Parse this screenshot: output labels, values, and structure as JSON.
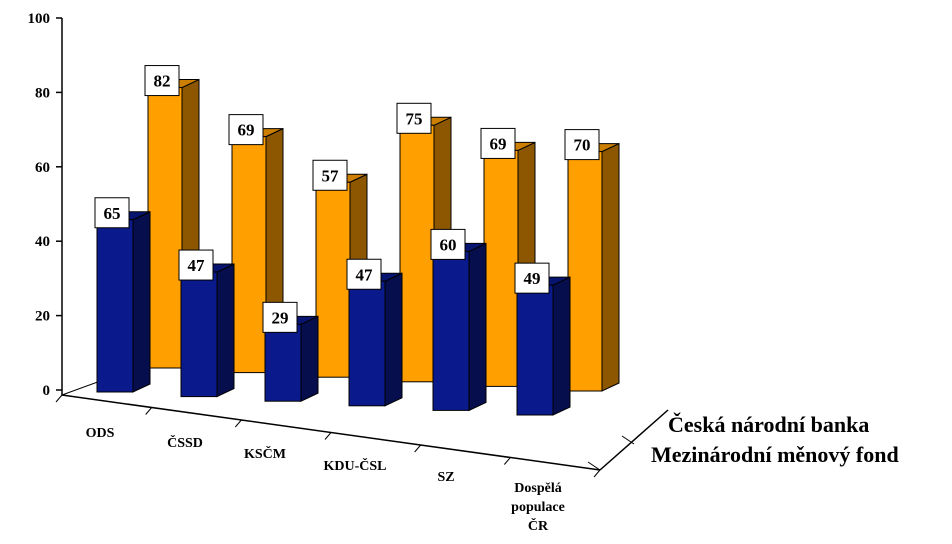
{
  "chart_data": {
    "type": "bar",
    "categories": [
      "ODS",
      "ČSSD",
      "KSČM",
      "KDU-ČSL",
      "SZ",
      "Dospělá populace ČR"
    ],
    "series": [
      {
        "name": "Česká národní banka",
        "values": [
          65,
          47,
          29,
          47,
          60,
          49
        ]
      },
      {
        "name": "Mezinárodní měnový fond",
        "values": [
          82,
          69,
          57,
          75,
          69,
          70
        ]
      }
    ],
    "yticks": [
      0,
      20,
      40,
      60,
      80,
      100
    ],
    "ylim": [
      0,
      100
    ],
    "colors": {
      "front": "#0a1a8c",
      "back": "#ff9f00"
    }
  }
}
